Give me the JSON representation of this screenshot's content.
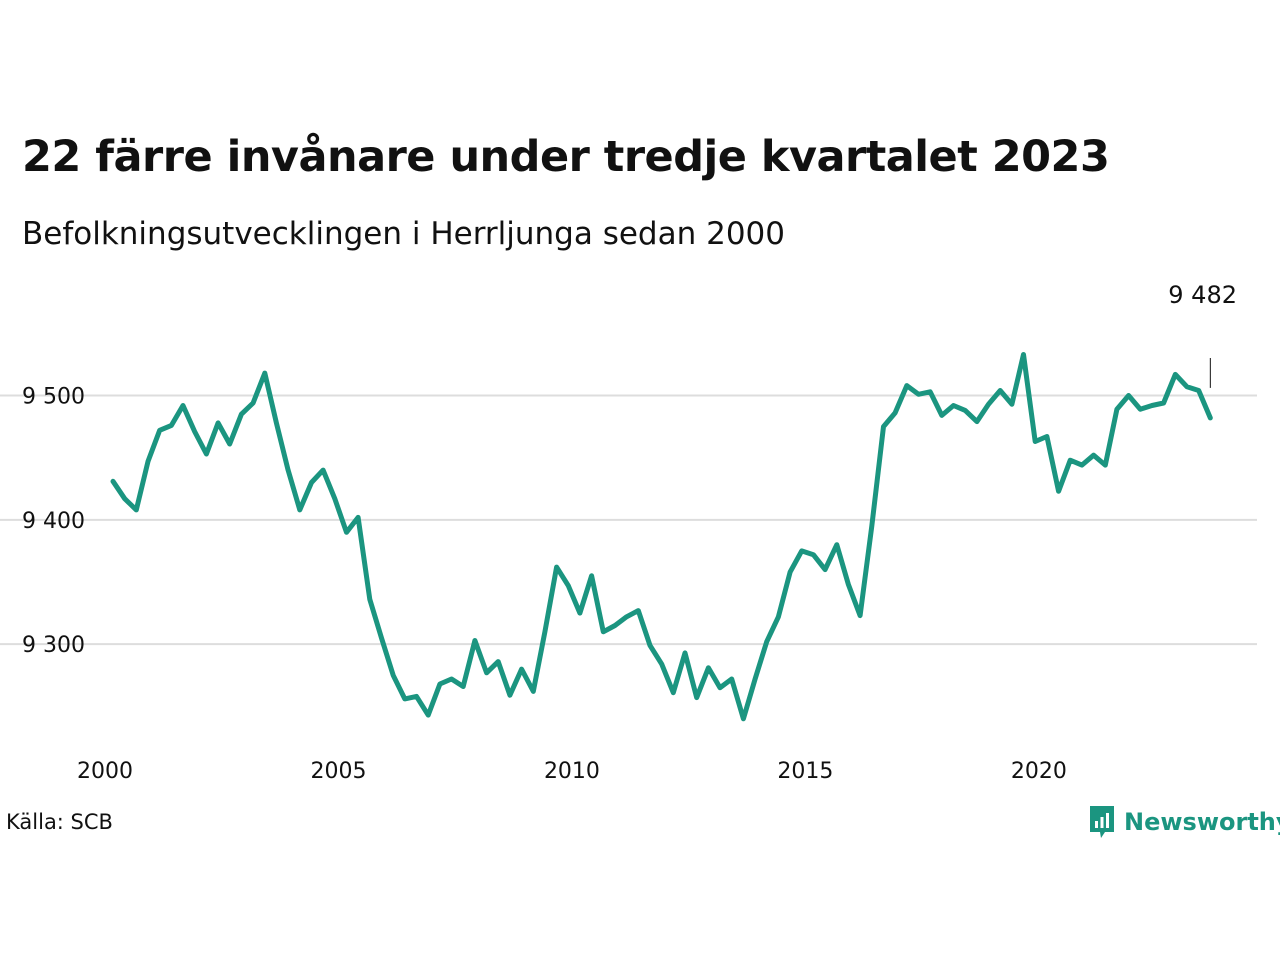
{
  "header": {
    "title": "22 färre invånare under tredje kvartalet 2023",
    "subtitle": "Befolkningsutvecklingen i Herrljunga sedan 2000"
  },
  "footer": {
    "source": "Källa: SCB",
    "brand": "Newsworthy"
  },
  "colors": {
    "line": "#1b9580",
    "grid": "#dddddd",
    "text": "#111111",
    "brand": "#1b9580"
  },
  "chart_data": {
    "type": "line",
    "title": "22 färre invånare under tredje kvartalet 2023",
    "subtitle": "Befolkningsutvecklingen i Herrljunga sedan 2000",
    "xlabel": "",
    "ylabel": "",
    "x_ticks": [
      2000,
      2005,
      2010,
      2015,
      2020
    ],
    "x_tick_labels": [
      "2000",
      "2005",
      "2010",
      "2015",
      "2020"
    ],
    "y_ticks": [
      9300,
      9400,
      9500
    ],
    "y_tick_labels": [
      "9 300",
      "9 400",
      "9 500"
    ],
    "xlim": [
      2000,
      2023.75
    ],
    "ylim": [
      9235,
      9535
    ],
    "grid": true,
    "legend": "none",
    "annotation": {
      "label": "9 482",
      "x": 2023.5,
      "value": 9482
    },
    "series": [
      {
        "x": [
          2000.0,
          2000.25,
          2000.5,
          2000.75,
          2001.0,
          2001.25,
          2001.5,
          2001.75,
          2002.0,
          2002.25,
          2002.5,
          2002.75,
          2003.0,
          2003.25,
          2003.5,
          2003.75,
          2004.0,
          2004.25,
          2004.5,
          2004.75,
          2005.0,
          2005.25,
          2005.5,
          2005.75,
          2006.0,
          2006.25,
          2006.5,
          2006.75,
          2007.0,
          2007.25,
          2007.5,
          2007.75,
          2008.0,
          2008.25,
          2008.5,
          2008.75,
          2009.0,
          2009.25,
          2009.5,
          2009.75,
          2010.0,
          2010.25,
          2010.5,
          2010.75,
          2011.0,
          2011.25,
          2011.5,
          2011.75,
          2012.0,
          2012.25,
          2012.5,
          2012.75,
          2013.0,
          2013.25,
          2013.5,
          2013.75,
          2014.0,
          2014.25,
          2014.5,
          2014.75,
          2015.0,
          2015.25,
          2015.5,
          2015.75,
          2016.0,
          2016.25,
          2016.5,
          2016.75,
          2017.0,
          2017.25,
          2017.5,
          2017.75,
          2018.0,
          2018.25,
          2018.5,
          2018.75,
          2019.0,
          2019.25,
          2019.5,
          2019.75,
          2020.0,
          2020.25,
          2020.5,
          2020.75,
          2021.0,
          2021.25,
          2021.5,
          2021.75,
          2022.0,
          2022.25,
          2022.5,
          2022.75,
          2023.0,
          2023.25,
          2023.5
        ],
        "values": [
          9431,
          9417,
          9408,
          9447,
          9472,
          9476,
          9492,
          9471,
          9453,
          9478,
          9461,
          9485,
          9494,
          9518,
          9478,
          9440,
          9408,
          9430,
          9440,
          9417,
          9390,
          9402,
          9336,
          9305,
          9275,
          9256,
          9258,
          9243,
          9268,
          9272,
          9266,
          9303,
          9277,
          9286,
          9259,
          9280,
          9262,
          9310,
          9362,
          9347,
          9325,
          9355,
          9310,
          9315,
          9322,
          9327,
          9299,
          9284,
          9261,
          9293,
          9257,
          9281,
          9265,
          9272,
          9240,
          9272,
          9302,
          9322,
          9358,
          9375,
          9372,
          9360,
          9380,
          9348,
          9323,
          9395,
          9475,
          9486,
          9508,
          9501,
          9503,
          9484,
          9492,
          9488,
          9479,
          9493,
          9504,
          9493,
          9533,
          9463,
          9467,
          9423,
          9448,
          9444,
          9452,
          9444,
          9489,
          9500,
          9489,
          9492,
          9494,
          9517,
          9507,
          9504,
          9482
        ]
      }
    ]
  }
}
